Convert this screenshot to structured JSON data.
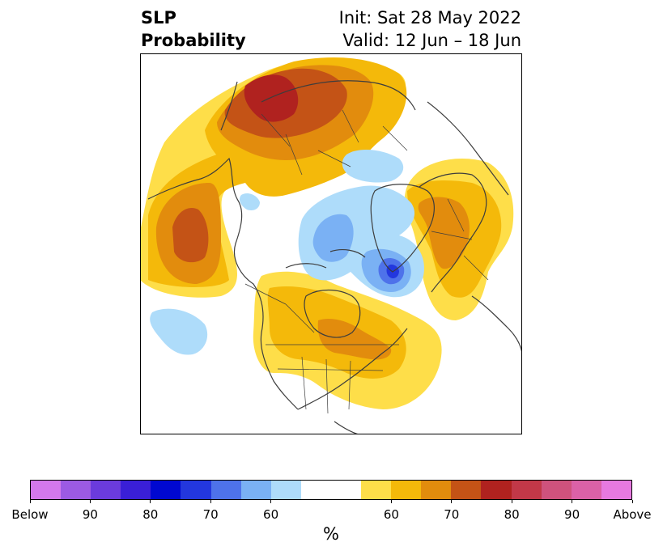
{
  "title": {
    "left_line1": "SLP",
    "left_line2": "Probability",
    "right_line1": "Init: Sat 28 May 2022",
    "right_line2": "Valid: 12 Jun – 18 Jun"
  },
  "colorbar": {
    "unit": "%",
    "below_colors": [
      "#d478ec",
      "#9c5ae3",
      "#6b3bdd",
      "#3a1fd7",
      "#0008d0",
      "#2337de",
      "#4e72ea",
      "#7ab1f4",
      "#aedcfa"
    ],
    "neutral_color": "#ffffff",
    "above_colors": [
      "#fede49",
      "#f4b90a",
      "#e28c0d",
      "#c45316",
      "#b0221f",
      "#c23848",
      "#cf527d",
      "#db61a7",
      "#e779e0"
    ],
    "tick_labels": [
      "Below",
      "90",
      "80",
      "70",
      "60",
      "60",
      "70",
      "80",
      "90",
      "Above"
    ]
  },
  "map": {
    "projection": "north-polar-stereographic",
    "features": [
      "coastlines",
      "country-borders",
      "us-state-borders",
      "canadian-province-borders"
    ]
  }
}
